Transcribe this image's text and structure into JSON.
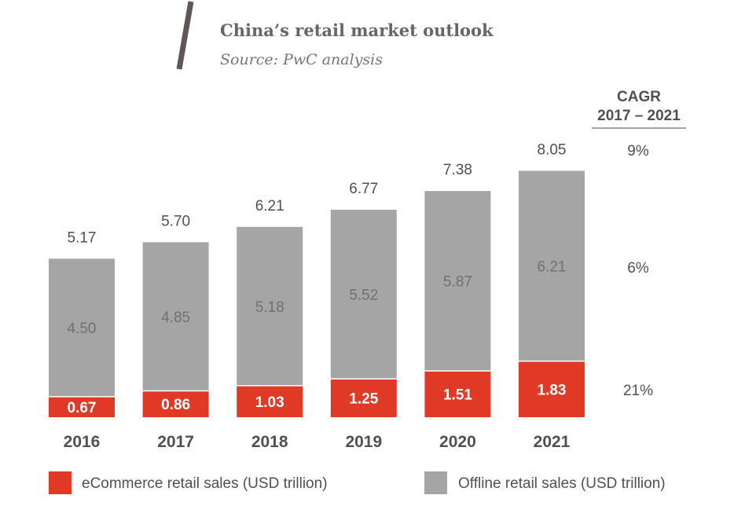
{
  "chart_data": {
    "type": "bar",
    "stacked": true,
    "title": "China’s retail market outlook",
    "subtitle": "Source: PwC analysis",
    "categories": [
      "2016",
      "2017",
      "2018",
      "2019",
      "2020",
      "2021"
    ],
    "series": [
      {
        "name": "eCommerce retail sales (USD trillion)",
        "values": [
          0.67,
          0.86,
          1.03,
          1.25,
          1.51,
          1.83
        ],
        "labels": [
          "0.67",
          "0.86",
          "1.03",
          "1.25",
          "1.51",
          "1.83"
        ],
        "color": "#e03a26"
      },
      {
        "name": "Offline retail sales (USD trillion)",
        "values": [
          4.5,
          4.85,
          5.18,
          5.52,
          5.87,
          6.21
        ],
        "labels": [
          "4.50",
          "4.85",
          "5.18",
          "5.52",
          "5.87",
          "6.21"
        ],
        "color": "#a5a5a5"
      }
    ],
    "totals": [
      5.17,
      5.7,
      6.21,
      6.77,
      7.38,
      8.05
    ],
    "total_labels": [
      "5.17",
      "5.70",
      "6.21",
      "6.77",
      "7.38",
      "8.05"
    ],
    "cagr": {
      "header_line1": "CAGR",
      "header_line2": "2017 – 2021",
      "total": "9%",
      "offline": "6%",
      "ecommerce": "21%"
    },
    "ylim": [
      0,
      8.05
    ],
    "grid": false,
    "legend_position": "bottom",
    "accent_color": "#e03a26",
    "text_color": "#505050"
  }
}
